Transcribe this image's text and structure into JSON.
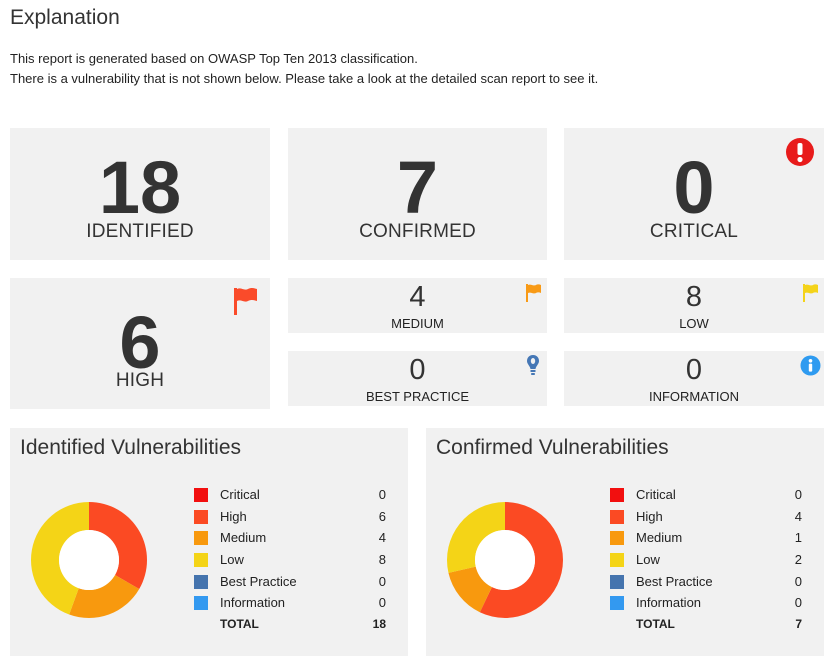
{
  "header": {
    "title": "Explanation",
    "line1": "This report is generated based on OWASP Top Ten 2013 classification.",
    "line2": "There is a vulnerability that is not shown below. Please take a look at the detailed scan report to see it."
  },
  "summary": {
    "identified": {
      "value": "18",
      "label": "IDENTIFIED"
    },
    "confirmed": {
      "value": "7",
      "label": "CONFIRMED"
    },
    "critical": {
      "value": "0",
      "label": "CRITICAL",
      "icon": "exclamation-circle-icon",
      "color": "#e81b1b"
    },
    "high": {
      "value": "6",
      "label": "HIGH",
      "icon": "flag-icon",
      "color": "#fa4b2a"
    },
    "medium": {
      "value": "4",
      "label": "MEDIUM",
      "icon": "flag-icon",
      "color": "#f89a16"
    },
    "low": {
      "value": "8",
      "label": "LOW",
      "icon": "flag-icon",
      "color": "#f4d31a"
    },
    "best_practice": {
      "value": "0",
      "label": "BEST PRACTICE",
      "icon": "lightbulb-icon",
      "color": "#4577b5"
    },
    "information": {
      "value": "0",
      "label": "INFORMATION",
      "icon": "info-circle-icon",
      "color": "#2f9bf0"
    }
  },
  "chart_data": [
    {
      "type": "pie",
      "title": "Identified Vulnerabilities",
      "categories": [
        "Critical",
        "High",
        "Medium",
        "Low",
        "Best Practice",
        "Information"
      ],
      "values": [
        0,
        6,
        4,
        8,
        0,
        0
      ],
      "colors": [
        "#f20f0f",
        "#fb4a23",
        "#f8990e",
        "#f4d417",
        "#4574ae",
        "#3399f0"
      ],
      "total_label": "TOTAL",
      "total": 18,
      "legend": "right"
    },
    {
      "type": "pie",
      "title": "Confirmed Vulnerabilities",
      "categories": [
        "Critical",
        "High",
        "Medium",
        "Low",
        "Best Practice",
        "Information"
      ],
      "values": [
        0,
        4,
        1,
        2,
        0,
        0
      ],
      "colors": [
        "#f20f0f",
        "#fb4a23",
        "#f8990e",
        "#f4d417",
        "#4574ae",
        "#3399f0"
      ],
      "total_label": "TOTAL",
      "total": 7,
      "legend": "right"
    }
  ]
}
